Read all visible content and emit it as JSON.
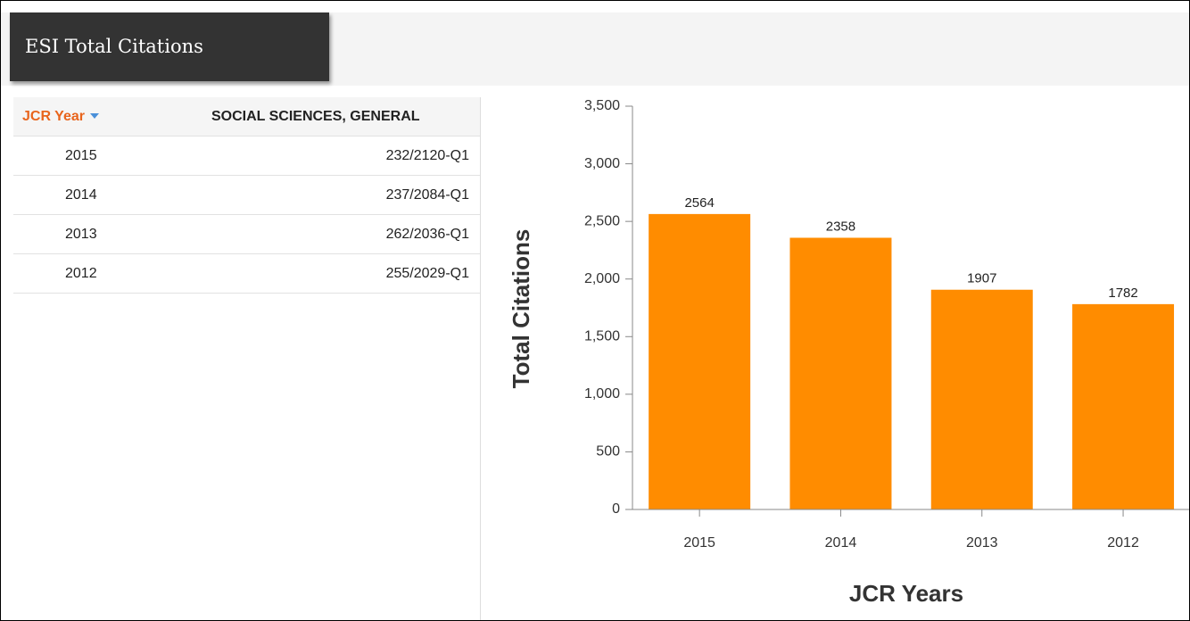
{
  "header": {
    "title": "ESI Total Citations"
  },
  "table": {
    "columns": [
      "JCR Year",
      "SOCIAL SCIENCES, GENERAL"
    ],
    "rows": [
      [
        "2015",
        "232/2120-Q1"
      ],
      [
        "2014",
        "237/2084-Q1"
      ],
      [
        "2013",
        "262/2036-Q1"
      ],
      [
        "2012",
        "255/2029-Q1"
      ]
    ]
  },
  "chart_data": {
    "type": "bar",
    "x_label": "JCR Years",
    "y_label": "Total Citations",
    "categories": [
      "2015",
      "2014",
      "2013",
      "2012"
    ],
    "values": [
      2564,
      2358,
      1907,
      1782
    ],
    "color": "#ff8c00",
    "ylim": [
      0,
      3500
    ],
    "yticks": [
      0,
      500,
      {
        "value": 1000,
        "label": "1,000"
      },
      {
        "value": 1500,
        "label": "1,500"
      },
      {
        "value": 2000,
        "label": "2,000"
      },
      {
        "value": 2500,
        "label": "2,500"
      },
      {
        "value": 3000,
        "label": "3,000"
      },
      {
        "value": 3500,
        "label": "3,500"
      }
    ]
  }
}
